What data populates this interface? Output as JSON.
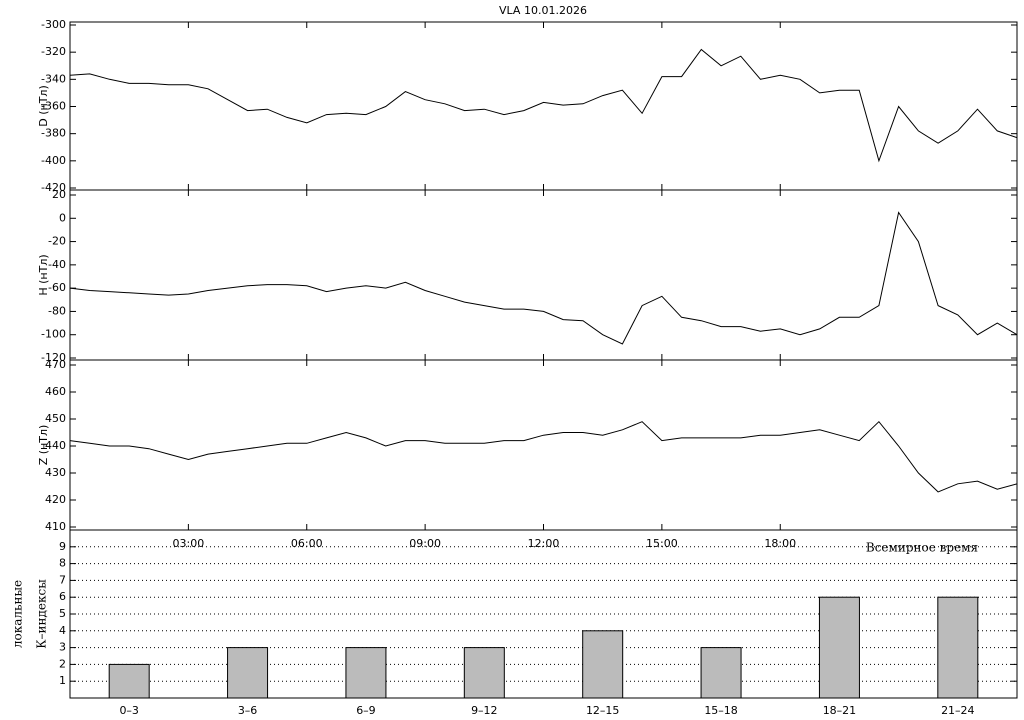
{
  "chart_data": [
    {
      "type": "line",
      "title": "VLA   10.01.2026",
      "y_label": "D (нТл)",
      "color": "#000000",
      "x": [
        0,
        0.5,
        1,
        1.5,
        2,
        2.5,
        3,
        3.5,
        4,
        4.5,
        5,
        5.5,
        6,
        6.5,
        7,
        7.5,
        8,
        8.5,
        9,
        9.5,
        10,
        10.5,
        11,
        11.5,
        12,
        12.5,
        13,
        13.5,
        14,
        14.5,
        15,
        15.5,
        16,
        16.5,
        17,
        17.5,
        18,
        18.5,
        19,
        19.5,
        20,
        20.5,
        21,
        21.5,
        22,
        22.5,
        23,
        23.5,
        24
      ],
      "values": [
        -337,
        -336,
        -340,
        -343,
        -343,
        -344,
        -344,
        -347,
        -355,
        -363,
        -362,
        -368,
        -372,
        -366,
        -365,
        -366,
        -360,
        -349,
        -355,
        -358,
        -363,
        -362,
        -366,
        -363,
        -357,
        -359,
        -358,
        -352,
        -348,
        -365,
        -338,
        -338,
        -318,
        -330,
        -323,
        -340,
        -337,
        -340,
        -350,
        -348,
        -348,
        -400,
        -360,
        -378,
        -387,
        -378,
        -362,
        -378,
        -383
      ],
      "xlim": [
        0,
        24
      ],
      "ylim": [
        -420,
        -300
      ],
      "yticks": [
        -420,
        -400,
        -380,
        -360,
        -340,
        -320,
        -300
      ]
    },
    {
      "type": "line",
      "y_label": "H (нТл)",
      "color": "#000000",
      "x": [
        0,
        0.5,
        1,
        1.5,
        2,
        2.5,
        3,
        3.5,
        4,
        4.5,
        5,
        5.5,
        6,
        6.5,
        7,
        7.5,
        8,
        8.5,
        9,
        9.5,
        10,
        10.5,
        11,
        11.5,
        12,
        12.5,
        13,
        13.5,
        14,
        14.5,
        15,
        15.5,
        16,
        16.5,
        17,
        17.5,
        18,
        18.5,
        19,
        19.5,
        20,
        20.5,
        21,
        21.5,
        22,
        22.5,
        23,
        23.5,
        24
      ],
      "values": [
        -60,
        -62,
        -63,
        -64,
        -65,
        -66,
        -65,
        -62,
        -60,
        -58,
        -57,
        -57,
        -58,
        -63,
        -60,
        -58,
        -60,
        -55,
        -62,
        -67,
        -72,
        -75,
        -78,
        -78,
        -80,
        -87,
        -88,
        -100,
        -108,
        -75,
        -67,
        -85,
        -88,
        -93,
        -93,
        -97,
        -95,
        -100,
        -95,
        -85,
        -85,
        -75,
        5,
        -20,
        -75,
        -83,
        -100,
        -90,
        -100
      ],
      "xlim": [
        0,
        24
      ],
      "ylim": [
        -120,
        20
      ],
      "yticks": [
        -120,
        -100,
        -80,
        -60,
        -40,
        -20,
        0,
        20
      ]
    },
    {
      "type": "line",
      "y_label": "Z (нТл)",
      "x_label": "Всемирное время",
      "color": "#000000",
      "x": [
        0,
        0.5,
        1,
        1.5,
        2,
        2.5,
        3,
        3.5,
        4,
        4.5,
        5,
        5.5,
        6,
        6.5,
        7,
        7.5,
        8,
        8.5,
        9,
        9.5,
        10,
        10.5,
        11,
        11.5,
        12,
        12.5,
        13,
        13.5,
        14,
        14.5,
        15,
        15.5,
        16,
        16.5,
        17,
        17.5,
        18,
        18.5,
        19,
        19.5,
        20,
        20.5,
        21,
        21.5,
        22,
        22.5,
        23,
        23.5,
        24
      ],
      "values": [
        442,
        441,
        440,
        440,
        439,
        437,
        435,
        437,
        438,
        439,
        440,
        441,
        441,
        443,
        445,
        443,
        440,
        442,
        442,
        441,
        441,
        441,
        442,
        442,
        444,
        445,
        445,
        444,
        446,
        449,
        442,
        443,
        443,
        443,
        443,
        444,
        444,
        445,
        446,
        444,
        442,
        449,
        440,
        430,
        423,
        426,
        427,
        424,
        426
      ],
      "xlim": [
        0,
        24
      ],
      "ylim": [
        410,
        470
      ],
      "yticks": [
        410,
        420,
        430,
        440,
        450,
        460,
        470
      ],
      "xticks": [
        {
          "value": 3,
          "label": "03:00"
        },
        {
          "value": 6,
          "label": "06:00"
        },
        {
          "value": 9,
          "label": "09:00"
        },
        {
          "value": 12,
          "label": "12:00"
        },
        {
          "value": 15,
          "label": "15:00"
        },
        {
          "value": 18,
          "label": "18:00"
        }
      ]
    },
    {
      "type": "bar",
      "y_label": [
        "локальные",
        "К–индексы"
      ],
      "color": "#bbbbbb",
      "grid": true,
      "categories": [
        "0–3",
        "3–6",
        "6–9",
        "9–12",
        "12–15",
        "15–18",
        "18–21",
        "21–24"
      ],
      "values": [
        2,
        3,
        3,
        3,
        4,
        3,
        6,
        6
      ],
      "ylim": [
        0,
        10
      ],
      "yticks": [
        1,
        2,
        3,
        4,
        5,
        6,
        7,
        8,
        9
      ]
    }
  ]
}
